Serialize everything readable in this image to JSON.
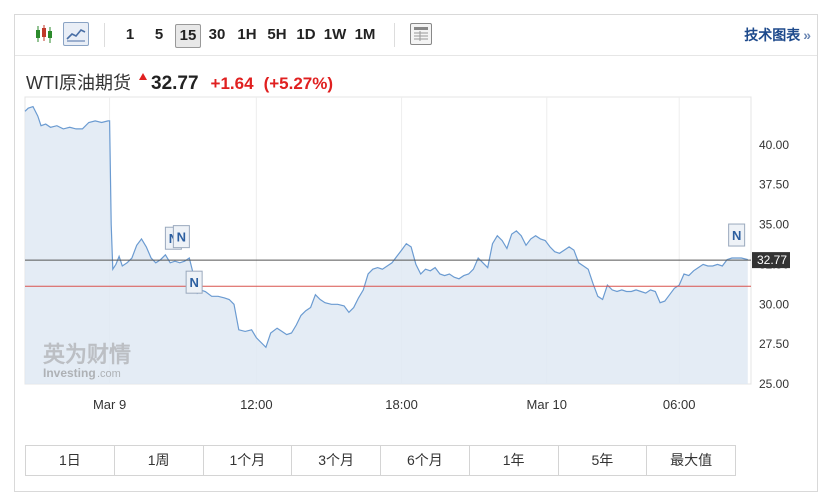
{
  "toolbar": {
    "intervals": [
      "1",
      "5",
      "15",
      "30",
      "1H",
      "5H",
      "1D",
      "1W",
      "1M"
    ],
    "active_interval": "15",
    "tech_chart_label": "技术图表",
    "tech_chart_arrow": "»"
  },
  "quote": {
    "name": "WTI原油期货",
    "price": "32.77",
    "change": "+1.64",
    "change_pct": "(+5.27%)",
    "colors": {
      "up": "#e02020"
    }
  },
  "watermark": {
    "cn": "英为财情",
    "en": "Investing",
    "en_suffix": ".com"
  },
  "periods": [
    "1日",
    "1周",
    "1个月",
    "3个月",
    "6个月",
    "1年",
    "5年",
    "最大值"
  ],
  "chart_data": {
    "type": "area",
    "title": "",
    "xlabel": "",
    "ylabel": "",
    "ylim": [
      25.0,
      43.0
    ],
    "y_ticks": [
      "40.00",
      "37.50",
      "35.00",
      "32.50",
      "30.00",
      "27.50",
      "25.00"
    ],
    "y_tick_values": [
      40.0,
      37.5,
      35.0,
      32.5,
      30.0,
      27.5,
      25.0
    ],
    "x_tick_labels": [
      "Mar 9",
      "12:00",
      "18:00",
      "Mar 10",
      "06:00"
    ],
    "x_tick_index": [
      5.3,
      14.5,
      23.6,
      32.7,
      41.0
    ],
    "x_range": [
      0,
      45.5
    ],
    "grid": "vertical",
    "legend": "none",
    "current_price": 32.77,
    "current_price_label": "32.77",
    "previous_close": 31.13,
    "series": [
      {
        "values": [
          [
            0,
            42.1
          ],
          [
            0.2,
            42.3
          ],
          [
            0.5,
            42.4
          ],
          [
            0.8,
            41.8
          ],
          [
            1.0,
            41.2
          ],
          [
            1.3,
            41.3
          ],
          [
            1.6,
            41.1
          ],
          [
            2.0,
            41.2
          ],
          [
            2.4,
            41.0
          ],
          [
            2.8,
            41.1
          ],
          [
            3.2,
            41.0
          ],
          [
            3.6,
            41.0
          ],
          [
            4.0,
            41.4
          ],
          [
            4.4,
            41.5
          ],
          [
            4.8,
            41.4
          ],
          [
            5.2,
            41.5
          ],
          [
            5.3,
            41.5
          ],
          [
            5.4,
            35.0
          ],
          [
            5.5,
            32.2
          ],
          [
            5.7,
            32.5
          ],
          [
            5.9,
            33.0
          ],
          [
            6.1,
            32.4
          ],
          [
            6.4,
            32.6
          ],
          [
            6.7,
            32.9
          ],
          [
            7.0,
            33.7
          ],
          [
            7.3,
            34.1
          ],
          [
            7.6,
            33.6
          ],
          [
            7.9,
            32.9
          ],
          [
            8.2,
            32.6
          ],
          [
            8.5,
            32.8
          ],
          [
            8.8,
            33.1
          ],
          [
            9.1,
            32.6
          ],
          [
            9.4,
            32.7
          ],
          [
            9.7,
            32.6
          ],
          [
            10.0,
            32.7
          ],
          [
            10.3,
            32.9
          ],
          [
            10.6,
            31.7
          ],
          [
            10.8,
            30.7
          ],
          [
            11.0,
            30.9
          ],
          [
            11.3,
            30.8
          ],
          [
            11.7,
            30.5
          ],
          [
            12.1,
            30.5
          ],
          [
            12.5,
            30.4
          ],
          [
            12.8,
            30.3
          ],
          [
            13.1,
            30.0
          ],
          [
            13.4,
            28.4
          ],
          [
            13.8,
            28.3
          ],
          [
            14.2,
            28.4
          ],
          [
            14.5,
            27.9
          ],
          [
            14.8,
            27.6
          ],
          [
            15.1,
            27.3
          ],
          [
            15.4,
            28.2
          ],
          [
            15.8,
            28.5
          ],
          [
            16.1,
            28.3
          ],
          [
            16.4,
            28.1
          ],
          [
            16.7,
            28.2
          ],
          [
            17.0,
            28.7
          ],
          [
            17.3,
            29.3
          ],
          [
            17.6,
            29.6
          ],
          [
            17.9,
            29.8
          ],
          [
            18.2,
            30.6
          ],
          [
            18.5,
            30.3
          ],
          [
            18.8,
            30.1
          ],
          [
            19.2,
            30.0
          ],
          [
            19.6,
            30.0
          ],
          [
            20.0,
            29.9
          ],
          [
            20.3,
            29.5
          ],
          [
            20.6,
            29.8
          ],
          [
            20.9,
            30.4
          ],
          [
            21.2,
            30.9
          ],
          [
            21.5,
            31.9
          ],
          [
            21.8,
            32.2
          ],
          [
            22.1,
            32.3
          ],
          [
            22.4,
            32.2
          ],
          [
            22.7,
            32.4
          ],
          [
            23.0,
            32.6
          ],
          [
            23.3,
            33.0
          ],
          [
            23.6,
            33.4
          ],
          [
            23.9,
            33.8
          ],
          [
            24.2,
            33.6
          ],
          [
            24.5,
            32.5
          ],
          [
            24.8,
            31.9
          ],
          [
            25.1,
            32.2
          ],
          [
            25.4,
            32.1
          ],
          [
            25.7,
            32.3
          ],
          [
            26.0,
            31.9
          ],
          [
            26.3,
            31.8
          ],
          [
            26.6,
            31.9
          ],
          [
            26.9,
            31.7
          ],
          [
            27.2,
            31.6
          ],
          [
            27.5,
            31.8
          ],
          [
            27.8,
            31.9
          ],
          [
            28.1,
            32.2
          ],
          [
            28.4,
            32.9
          ],
          [
            28.7,
            32.6
          ],
          [
            29.0,
            32.3
          ],
          [
            29.3,
            33.8
          ],
          [
            29.6,
            34.3
          ],
          [
            29.9,
            34.0
          ],
          [
            30.2,
            33.5
          ],
          [
            30.5,
            34.4
          ],
          [
            30.8,
            34.6
          ],
          [
            31.1,
            34.3
          ],
          [
            31.4,
            33.7
          ],
          [
            31.7,
            34.1
          ],
          [
            32.0,
            34.3
          ],
          [
            32.3,
            34.1
          ],
          [
            32.6,
            34.0
          ],
          [
            32.9,
            33.6
          ],
          [
            33.2,
            33.3
          ],
          [
            33.5,
            33.2
          ],
          [
            33.8,
            33.4
          ],
          [
            34.1,
            33.6
          ],
          [
            34.4,
            33.4
          ],
          [
            34.7,
            32.6
          ],
          [
            35.0,
            32.4
          ],
          [
            35.3,
            32.2
          ],
          [
            35.6,
            31.3
          ],
          [
            35.9,
            30.5
          ],
          [
            36.2,
            30.3
          ],
          [
            36.5,
            31.2
          ],
          [
            36.8,
            30.9
          ],
          [
            37.1,
            30.8
          ],
          [
            37.4,
            30.9
          ],
          [
            37.7,
            30.8
          ],
          [
            38.0,
            30.8
          ],
          [
            38.3,
            30.9
          ],
          [
            38.6,
            30.8
          ],
          [
            38.9,
            30.7
          ],
          [
            39.2,
            30.9
          ],
          [
            39.5,
            30.8
          ],
          [
            39.8,
            30.1
          ],
          [
            40.1,
            30.2
          ],
          [
            40.4,
            30.6
          ],
          [
            40.7,
            31.0
          ],
          [
            41.0,
            31.2
          ],
          [
            41.3,
            31.9
          ],
          [
            41.6,
            31.8
          ],
          [
            41.9,
            32.1
          ],
          [
            42.2,
            32.3
          ],
          [
            42.5,
            32.5
          ],
          [
            42.8,
            32.4
          ],
          [
            43.1,
            32.4
          ],
          [
            43.4,
            32.5
          ],
          [
            43.7,
            32.4
          ],
          [
            44.0,
            32.8
          ],
          [
            44.3,
            32.9
          ],
          [
            44.6,
            32.9
          ],
          [
            44.9,
            32.9
          ],
          [
            45.3,
            32.8
          ]
        ]
      }
    ],
    "news_markers": [
      {
        "label": "N",
        "x": 9.3,
        "y": 32.7
      },
      {
        "label": "N",
        "x": 9.8,
        "y": 32.8
      },
      {
        "label": "N",
        "x": 10.6,
        "y": 31.7
      },
      {
        "label": "N",
        "x": 44.6,
        "y": 32.9
      }
    ]
  }
}
